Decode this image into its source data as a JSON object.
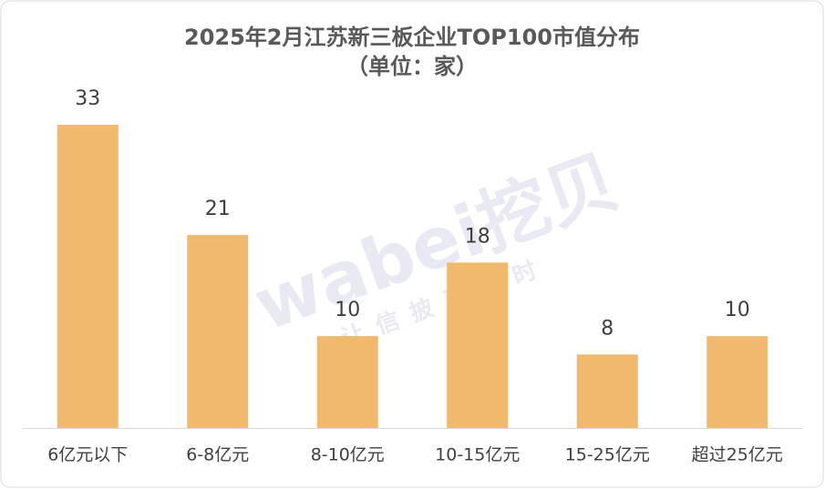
{
  "chart_data": {
    "type": "bar",
    "title": "2025年2月江苏新三板企业TOP100市值分布",
    "subtitle": "（单位：家）",
    "categories": [
      "6亿元以下",
      "6-8亿元",
      "8-10亿元",
      "10-15亿元",
      "15-25亿元",
      "超过25亿元"
    ],
    "values": [
      33,
      21,
      10,
      18,
      8,
      10
    ],
    "color": "#f0b96e",
    "watermark": [
      "wabei挖贝",
      "让信披更及时"
    ]
  }
}
